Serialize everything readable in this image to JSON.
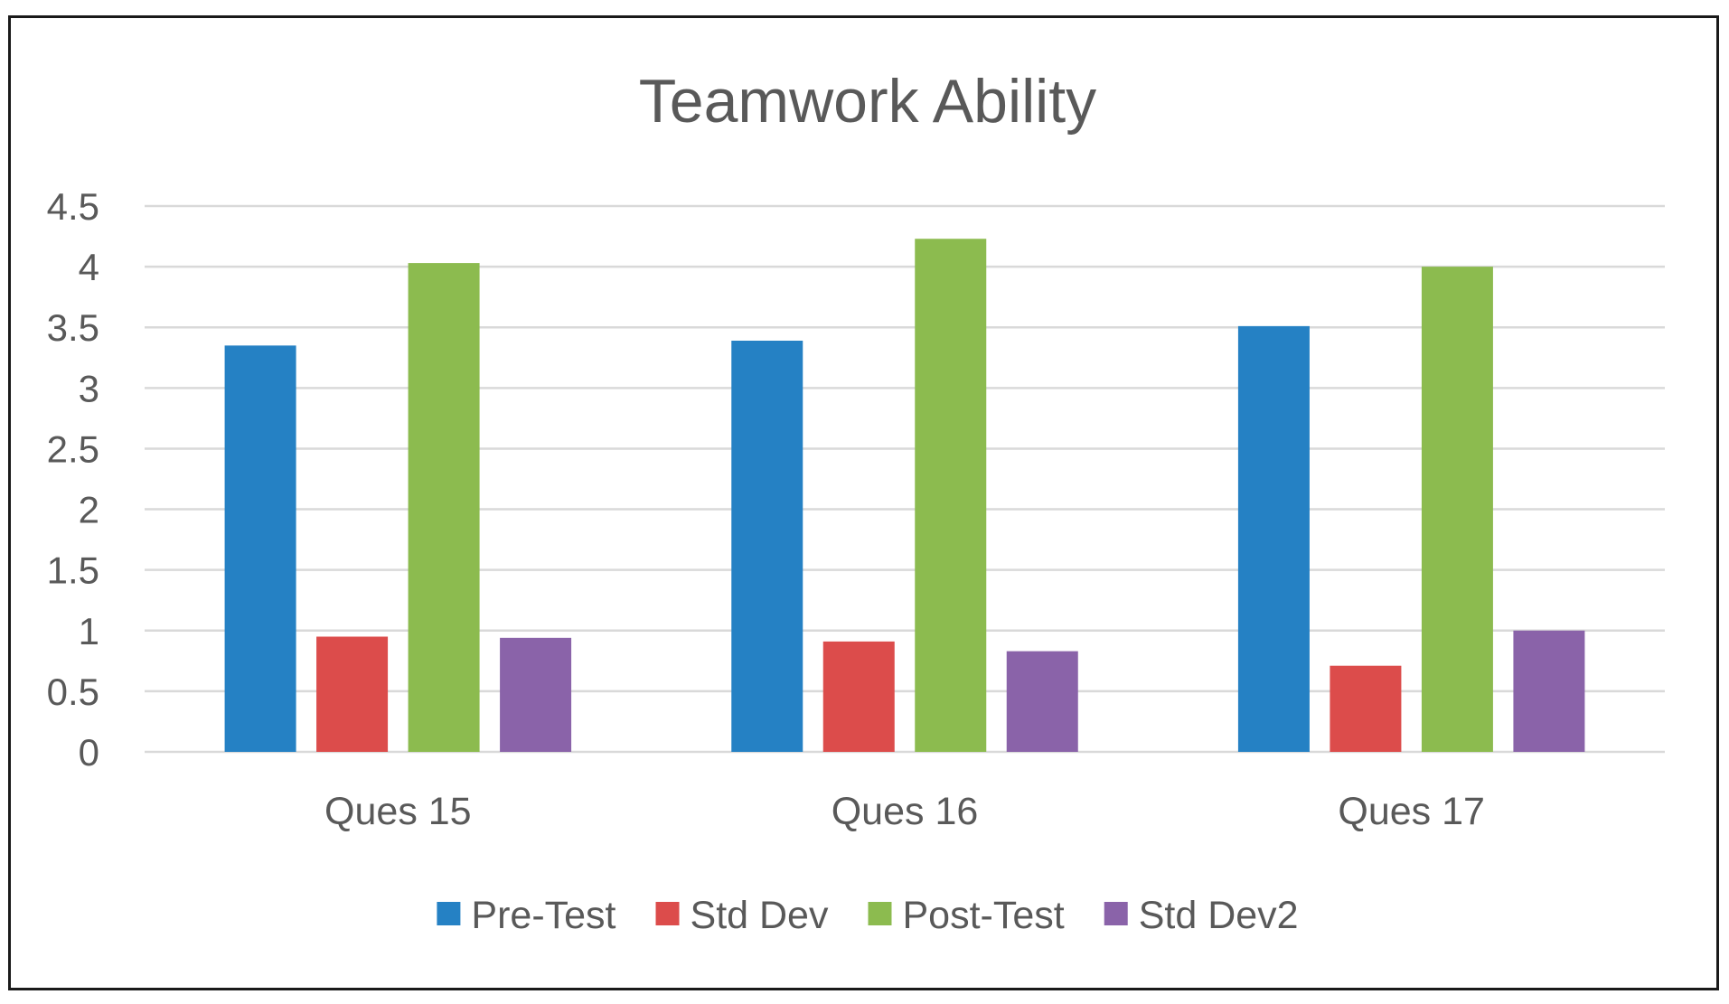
{
  "chart_data": {
    "type": "bar",
    "title": "Teamwork Ability",
    "categories": [
      "Ques 15",
      "Ques 16",
      "Ques 17"
    ],
    "series": [
      {
        "name": "Pre-Test",
        "color": "#2581c4",
        "values": [
          3.35,
          3.39,
          3.51
        ]
      },
      {
        "name": "Std Dev",
        "color": "#dc4c4b",
        "values": [
          0.95,
          0.91,
          0.71
        ]
      },
      {
        "name": "Post-Test",
        "color": "#8cbb4f",
        "values": [
          4.03,
          4.23,
          4.0
        ]
      },
      {
        "name": "Std Dev2",
        "color": "#8a63a9",
        "values": [
          0.94,
          0.83,
          1.0
        ]
      }
    ],
    "ylim": [
      0,
      4.5
    ],
    "yticks": [
      "0",
      "0.5",
      "1",
      "1.5",
      "2",
      "2.5",
      "3",
      "3.5",
      "4",
      "4.5"
    ],
    "xlabel": "",
    "ylabel": "",
    "grid": true,
    "legend_position": "bottom"
  }
}
